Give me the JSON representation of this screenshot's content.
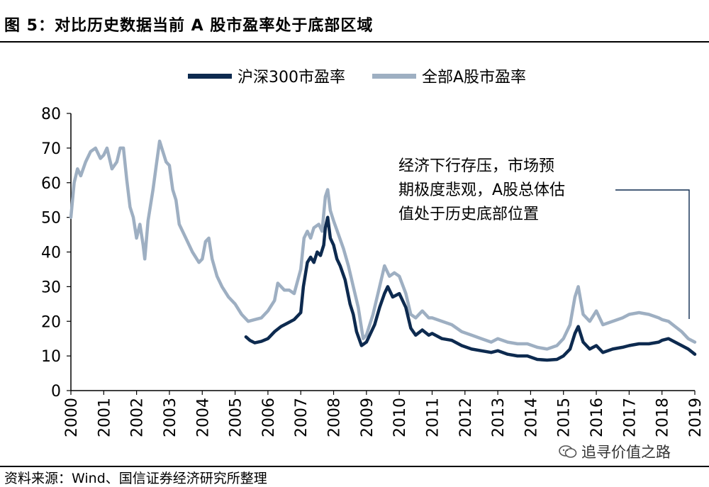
{
  "figure": {
    "title": "图 5：对比历史数据当前 A 股市盈率处于底部区域",
    "source": "资料来源：Wind、国信证券经济研究所整理",
    "watermark": "追寻价值之路",
    "watermark_icon": "wechat-icon"
  },
  "chart_data": {
    "type": "line",
    "title": "",
    "xlabel": "",
    "ylabel": "",
    "ylim": [
      0,
      80
    ],
    "y_ticks": [
      0,
      10,
      20,
      30,
      40,
      50,
      60,
      70,
      80
    ],
    "xlim": [
      2000,
      2019
    ],
    "x_ticks": [
      "2000",
      "2001",
      "2002",
      "2003",
      "2004",
      "2005",
      "2006",
      "2007",
      "2008",
      "2009",
      "2010",
      "2011",
      "2012",
      "2013",
      "2014",
      "2015",
      "2016",
      "2017",
      "2018",
      "2019"
    ],
    "grid": false,
    "legend_position": "top-center",
    "annotation": "经济下行存压，市场预\n期极度悲观，A股总体估\n值处于历史底部位置",
    "series": [
      {
        "name": "沪深300市盈率",
        "color": "#0d2a4f",
        "points": [
          [
            2005.33,
            15.5
          ],
          [
            2005.45,
            14.5
          ],
          [
            2005.6,
            13.8
          ],
          [
            2005.8,
            14.2
          ],
          [
            2006.0,
            15.0
          ],
          [
            2006.2,
            17.0
          ],
          [
            2006.4,
            18.5
          ],
          [
            2006.6,
            19.5
          ],
          [
            2006.8,
            20.5
          ],
          [
            2007.0,
            22.5
          ],
          [
            2007.08,
            30
          ],
          [
            2007.2,
            37
          ],
          [
            2007.3,
            38.5
          ],
          [
            2007.4,
            37
          ],
          [
            2007.5,
            40
          ],
          [
            2007.6,
            39
          ],
          [
            2007.7,
            42
          ],
          [
            2007.75,
            47
          ],
          [
            2007.82,
            50
          ],
          [
            2007.9,
            44
          ],
          [
            2008.0,
            42
          ],
          [
            2008.1,
            38
          ],
          [
            2008.2,
            36
          ],
          [
            2008.35,
            32
          ],
          [
            2008.5,
            25
          ],
          [
            2008.6,
            22
          ],
          [
            2008.7,
            17
          ],
          [
            2008.85,
            13
          ],
          [
            2009.0,
            14
          ],
          [
            2009.1,
            16
          ],
          [
            2009.25,
            19
          ],
          [
            2009.4,
            24
          ],
          [
            2009.55,
            28
          ],
          [
            2009.65,
            30
          ],
          [
            2009.8,
            27
          ],
          [
            2010.0,
            28
          ],
          [
            2010.2,
            24
          ],
          [
            2010.35,
            18
          ],
          [
            2010.5,
            16
          ],
          [
            2010.7,
            17.5
          ],
          [
            2010.9,
            16
          ],
          [
            2011.0,
            16.5
          ],
          [
            2011.3,
            15
          ],
          [
            2011.6,
            14.5
          ],
          [
            2011.9,
            13
          ],
          [
            2012.2,
            12
          ],
          [
            2012.5,
            11.5
          ],
          [
            2012.8,
            11
          ],
          [
            2013.0,
            11.5
          ],
          [
            2013.3,
            10.5
          ],
          [
            2013.6,
            10
          ],
          [
            2013.9,
            10
          ],
          [
            2014.2,
            9
          ],
          [
            2014.5,
            8.8
          ],
          [
            2014.8,
            9
          ],
          [
            2015.0,
            10
          ],
          [
            2015.2,
            12
          ],
          [
            2015.35,
            16.5
          ],
          [
            2015.45,
            18.5
          ],
          [
            2015.6,
            14
          ],
          [
            2015.8,
            12
          ],
          [
            2016.0,
            13
          ],
          [
            2016.2,
            11
          ],
          [
            2016.5,
            12
          ],
          [
            2016.8,
            12.5
          ],
          [
            2017.0,
            13
          ],
          [
            2017.3,
            13.5
          ],
          [
            2017.6,
            13.5
          ],
          [
            2017.9,
            14
          ],
          [
            2018.0,
            14.5
          ],
          [
            2018.2,
            15
          ],
          [
            2018.4,
            14
          ],
          [
            2018.6,
            13
          ],
          [
            2018.8,
            12
          ],
          [
            2019.0,
            10.5
          ]
        ]
      },
      {
        "name": "全部A股市盈率",
        "color": "#9eafc2",
        "points": [
          [
            2000.0,
            50
          ],
          [
            2000.1,
            60
          ],
          [
            2000.2,
            64
          ],
          [
            2000.3,
            62
          ],
          [
            2000.45,
            66
          ],
          [
            2000.6,
            69
          ],
          [
            2000.75,
            70
          ],
          [
            2000.9,
            67
          ],
          [
            2001.0,
            68
          ],
          [
            2001.1,
            70
          ],
          [
            2001.25,
            64
          ],
          [
            2001.4,
            66
          ],
          [
            2001.5,
            70
          ],
          [
            2001.6,
            70
          ],
          [
            2001.7,
            61
          ],
          [
            2001.8,
            53
          ],
          [
            2001.9,
            50
          ],
          [
            2002.0,
            44
          ],
          [
            2002.1,
            48
          ],
          [
            2002.2,
            42
          ],
          [
            2002.25,
            38
          ],
          [
            2002.35,
            49
          ],
          [
            2002.5,
            58
          ],
          [
            2002.6,
            65
          ],
          [
            2002.7,
            72
          ],
          [
            2002.8,
            69
          ],
          [
            2002.9,
            66
          ],
          [
            2003.0,
            65
          ],
          [
            2003.1,
            58
          ],
          [
            2003.2,
            55
          ],
          [
            2003.3,
            48
          ],
          [
            2003.5,
            44
          ],
          [
            2003.7,
            40
          ],
          [
            2003.9,
            37
          ],
          [
            2004.0,
            38
          ],
          [
            2004.1,
            43
          ],
          [
            2004.2,
            44
          ],
          [
            2004.3,
            38
          ],
          [
            2004.45,
            33
          ],
          [
            2004.6,
            30
          ],
          [
            2004.8,
            27
          ],
          [
            2005.0,
            25
          ],
          [
            2005.2,
            22
          ],
          [
            2005.4,
            20
          ],
          [
            2005.6,
            20.5
          ],
          [
            2005.8,
            21
          ],
          [
            2006.0,
            23
          ],
          [
            2006.2,
            26
          ],
          [
            2006.3,
            31
          ],
          [
            2006.5,
            29
          ],
          [
            2006.65,
            29
          ],
          [
            2006.8,
            28
          ],
          [
            2007.0,
            35
          ],
          [
            2007.1,
            44
          ],
          [
            2007.2,
            46
          ],
          [
            2007.3,
            44
          ],
          [
            2007.4,
            47
          ],
          [
            2007.55,
            48
          ],
          [
            2007.65,
            46
          ],
          [
            2007.75,
            56
          ],
          [
            2007.82,
            58
          ],
          [
            2007.9,
            52
          ],
          [
            2008.0,
            49
          ],
          [
            2008.15,
            45
          ],
          [
            2008.3,
            41
          ],
          [
            2008.45,
            36
          ],
          [
            2008.6,
            30
          ],
          [
            2008.75,
            24
          ],
          [
            2008.9,
            15
          ],
          [
            2009.0,
            16
          ],
          [
            2009.2,
            22
          ],
          [
            2009.4,
            30
          ],
          [
            2009.55,
            36
          ],
          [
            2009.7,
            33
          ],
          [
            2009.85,
            34
          ],
          [
            2010.0,
            33
          ],
          [
            2010.2,
            28
          ],
          [
            2010.35,
            22
          ],
          [
            2010.5,
            21
          ],
          [
            2010.7,
            23
          ],
          [
            2010.9,
            21
          ],
          [
            2011.0,
            21
          ],
          [
            2011.3,
            20
          ],
          [
            2011.6,
            19
          ],
          [
            2011.9,
            17
          ],
          [
            2012.2,
            16
          ],
          [
            2012.5,
            15
          ],
          [
            2012.8,
            14
          ],
          [
            2013.0,
            15
          ],
          [
            2013.3,
            14
          ],
          [
            2013.6,
            13.5
          ],
          [
            2013.9,
            13.5
          ],
          [
            2014.2,
            12.5
          ],
          [
            2014.5,
            12
          ],
          [
            2014.8,
            13
          ],
          [
            2015.0,
            15
          ],
          [
            2015.2,
            19
          ],
          [
            2015.35,
            27
          ],
          [
            2015.45,
            30
          ],
          [
            2015.6,
            22
          ],
          [
            2015.8,
            20
          ],
          [
            2016.0,
            23
          ],
          [
            2016.2,
            19
          ],
          [
            2016.5,
            20
          ],
          [
            2016.8,
            21
          ],
          [
            2017.0,
            22
          ],
          [
            2017.3,
            22.5
          ],
          [
            2017.6,
            22
          ],
          [
            2017.9,
            21
          ],
          [
            2018.0,
            20.5
          ],
          [
            2018.2,
            20
          ],
          [
            2018.4,
            18.5
          ],
          [
            2018.6,
            17
          ],
          [
            2018.8,
            15
          ],
          [
            2019.0,
            14
          ]
        ]
      }
    ]
  }
}
